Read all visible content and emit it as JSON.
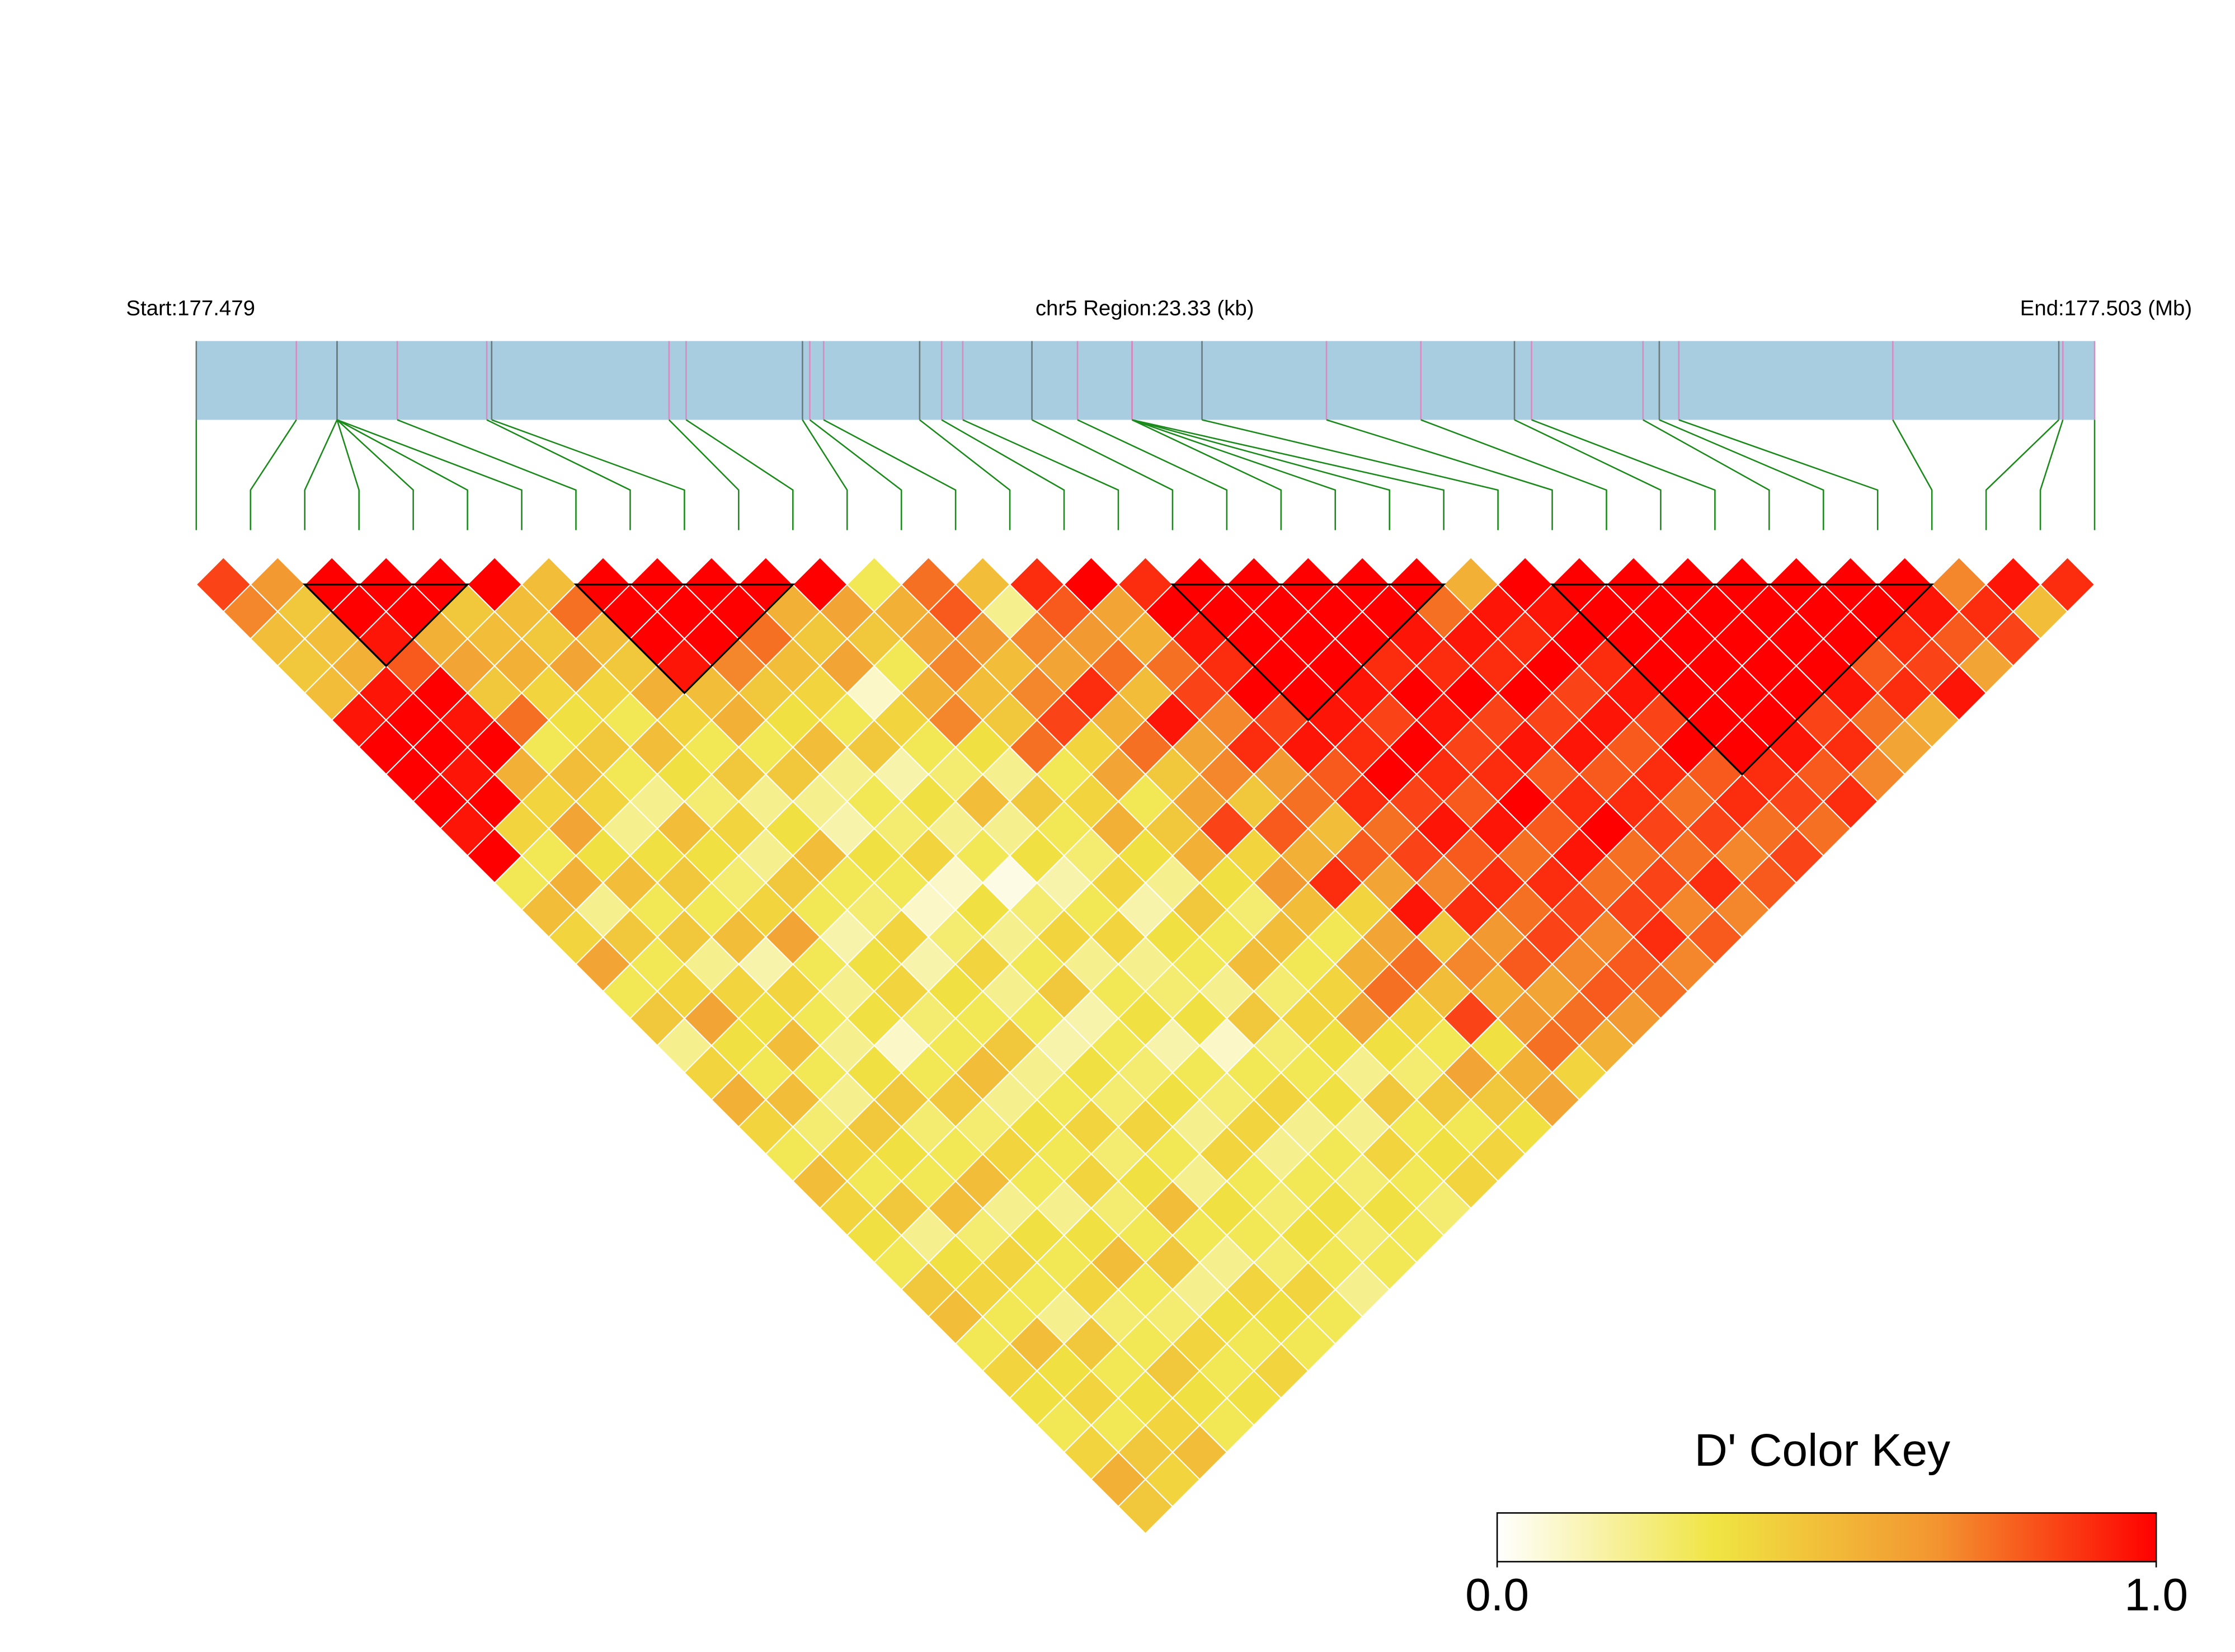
{
  "chart_data": {
    "type": "ld_heatmap",
    "start_label": "Start:177.479",
    "region_label": "chr5 Region:23.33 (kb)",
    "end_label": "End:177.503 (Mb)",
    "xlim": [
      0,
      23.33
    ],
    "track_color": "#a8cde0",
    "snp_positions_kb": [
      0,
      1.23,
      1.73,
      1.73,
      1.73,
      1.73,
      1.73,
      2.47,
      3.57,
      3.63,
      5.81,
      6.02,
      7.45,
      7.54,
      7.71,
      8.89,
      9.16,
      9.42,
      10.27,
      10.83,
      11.5,
      11.5,
      11.5,
      11.5,
      12.36,
      13.89,
      15.05,
      16.2,
      16.41,
      17.78,
      17.98,
      18.22,
      20.85,
      22.89,
      22.94,
      23.33
    ],
    "dprime": [
      [
        0.85,
        0.7,
        0.5,
        0.45,
        0.5,
        0.95,
        1,
        1,
        1,
        0.95,
        1,
        0.3,
        0.5,
        0.4,
        0.6,
        0.3,
        0.45,
        0.2,
        0.4,
        0.55,
        0.4,
        0.3,
        0.5,
        0.4,
        0.35,
        0.3,
        0.45,
        0.5,
        0.3,
        0.4,
        0.35,
        0.3,
        0.4,
        0.55,
        0.45
      ],
      [
        0.65,
        0.45,
        0.5,
        0.55,
        0.95,
        1,
        1,
        0.95,
        1,
        0.4,
        0.3,
        0.55,
        0.2,
        0.45,
        0.3,
        0.4,
        0.6,
        0.35,
        0.3,
        0.5,
        0.25,
        0.4,
        0.3,
        0.45,
        0.2,
        0.35,
        0.4,
        0.3,
        0.5,
        0.35,
        0.4,
        0.3,
        0.45,
        0.4
      ],
      [
        1,
        1,
        0.95,
        0.8,
        1,
        0.95,
        1,
        0.55,
        0.4,
        0.6,
        0.35,
        0.5,
        0.3,
        0.45,
        0.2,
        0.4,
        0.35,
        0.5,
        0.3,
        0.2,
        0.45,
        0.35,
        0.3,
        0.5,
        0.25,
        0.4,
        0.3,
        0.2,
        0.45,
        0.3,
        0.35,
        0.4,
        0.5
      ],
      [
        1,
        1,
        0.55,
        0.6,
        0.45,
        0.75,
        0.3,
        0.5,
        0.4,
        0.2,
        0.35,
        0.45,
        0.3,
        0.5,
        0.15,
        0.4,
        0.3,
        0.2,
        0.35,
        0.45,
        0.25,
        0.3,
        0.5,
        0.2,
        0.35,
        0.3,
        0.4,
        0.25,
        0.3,
        0.45,
        0.35,
        0.3
      ],
      [
        1,
        0.45,
        0.5,
        0.55,
        0.4,
        0.35,
        0.45,
        0.3,
        0.2,
        0.5,
        0.35,
        0.25,
        0.4,
        0.6,
        0.3,
        0.2,
        0.35,
        0.1,
        0.3,
        0.45,
        0.25,
        0.4,
        0.3,
        0.2,
        0.35,
        0.5,
        0.3,
        0.25,
        0.4,
        0.3,
        0.35
      ],
      [
        1,
        0.5,
        0.45,
        0.6,
        0.4,
        0.3,
        0.5,
        0.35,
        0.25,
        0.4,
        0.2,
        0.45,
        0.3,
        0.15,
        0.35,
        0.4,
        0.25,
        0.3,
        0.5,
        0.2,
        0.35,
        0.3,
        0.4,
        0.25,
        0.3,
        0.45,
        0.2,
        0.35,
        0.3,
        0.4
      ],
      [
        0.5,
        0.75,
        0.5,
        0.45,
        0.55,
        0.4,
        0.3,
        0.45,
        0.2,
        0.35,
        0.5,
        0.3,
        0.25,
        0.4,
        0.15,
        0.35,
        0.3,
        0.45,
        0.2,
        0.3,
        0.4,
        0.25,
        0.35,
        0.5,
        0.3,
        0.2,
        0.4,
        0.35,
        0.3
      ],
      [
        1,
        1,
        1,
        0.95,
        0.5,
        0.55,
        0.3,
        0.45,
        0.2,
        0.15,
        0.35,
        0.3,
        0.1,
        0.25,
        0.4,
        0.2,
        0.3,
        0.15,
        0.35,
        0.25,
        0.4,
        0.3,
        0.2,
        0.35,
        0.3,
        0.25,
        0.4,
        0.3
      ],
      [
        1,
        1,
        1,
        0.7,
        0.45,
        0.35,
        0.5,
        0.2,
        0.3,
        0.25,
        0.4,
        0.1,
        0.35,
        0.2,
        0.3,
        0.45,
        0.15,
        0.3,
        0.25,
        0.35,
        0.2,
        0.4,
        0.3,
        0.25,
        0.35,
        0.3,
        0.2
      ],
      [
        1,
        1,
        0.75,
        0.5,
        0.4,
        0.3,
        0.45,
        0.15,
        0.35,
        0.2,
        0.3,
        0.05,
        0.25,
        0.4,
        0.2,
        0.3,
        0.35,
        0.15,
        0.3,
        0.25,
        0.4,
        0.2,
        0.3,
        0.35,
        0.25,
        0.3
      ],
      [
        1,
        0.55,
        0.45,
        0.6,
        0.1,
        0.4,
        0.3,
        0.25,
        0.5,
        0.2,
        0.35,
        0.15,
        0.3,
        0.4,
        0.2,
        0.25,
        0.35,
        0.1,
        0.3,
        0.4,
        0.2,
        0.3,
        0.25,
        0.35,
        0.3
      ],
      [
        1,
        0.6,
        0.45,
        0.3,
        0.55,
        0.7,
        0.35,
        0.2,
        0.45,
        0.3,
        0.25,
        0.4,
        0.15,
        0.35,
        0.3,
        0.2,
        0.45,
        0.25,
        0.3,
        0.35,
        0.2,
        0.4,
        0.3,
        0.25
      ],
      [
        0.3,
        0.55,
        0.6,
        0.7,
        0.5,
        0.45,
        0.75,
        0.3,
        0.4,
        0.55,
        0.35,
        0.2,
        0.45,
        0.3,
        0.5,
        0.25,
        0.4,
        0.35,
        0.2,
        0.45,
        0.3,
        0.35,
        0.4
      ],
      [
        0.75,
        0.8,
        0.65,
        0.5,
        0.7,
        0.85,
        0.4,
        0.6,
        0.3,
        0.45,
        0.55,
        0.35,
        0.25,
        0.5,
        0.3,
        0.4,
        0.6,
        0.35,
        0.25,
        0.45,
        0.3,
        0.4
      ],
      [
        0.5,
        0.2,
        0.7,
        0.6,
        0.9,
        0.55,
        0.75,
        0.45,
        0.6,
        0.85,
        0.4,
        0.65,
        0.5,
        0.3,
        0.55,
        0.75,
        0.4,
        0.3,
        0.6,
        0.45,
        0.35
      ],
      [
        0.9,
        0.8,
        0.65,
        0.75,
        0.5,
        0.95,
        0.6,
        0.7,
        0.45,
        0.8,
        0.55,
        0.9,
        0.4,
        0.6,
        0.75,
        0.5,
        0.85,
        0.35,
        0.55,
        0.6
      ],
      [
        1,
        0.6,
        0.55,
        0.75,
        0.85,
        0.7,
        0.9,
        0.65,
        0.75,
        0.5,
        0.8,
        0.6,
        0.95,
        0.45,
        0.7,
        0.55,
        0.65,
        0.75,
        0.4
      ],
      [
        0.9,
        1,
        0.95,
        0.9,
        1,
        0.85,
        0.95,
        0.8,
        0.9,
        0.75,
        0.85,
        0.7,
        0.9,
        0.65,
        0.8,
        0.6,
        0.75,
        0.55
      ],
      [
        1,
        1,
        1,
        1,
        1,
        0.95,
        0.9,
        1,
        0.85,
        0.95,
        0.8,
        0.9,
        0.75,
        0.85,
        0.7,
        0.8,
        0.65
      ],
      [
        1,
        1,
        1,
        1,
        0.95,
        0.85,
        1,
        0.9,
        0.8,
        0.95,
        0.75,
        0.9,
        0.85,
        0.7,
        0.8,
        0.75
      ],
      [
        1,
        1,
        1,
        0.9,
        1,
        0.95,
        0.85,
        0.9,
        1,
        0.8,
        0.95,
        0.75,
        0.85,
        0.9,
        0.7
      ],
      [
        1,
        1,
        0.95,
        0.9,
        1,
        0.85,
        0.95,
        0.8,
        0.9,
        1,
        0.75,
        0.85,
        0.7,
        0.8
      ],
      [
        1,
        0.75,
        0.95,
        0.9,
        1,
        0.85,
        0.95,
        0.8,
        0.9,
        0.85,
        0.75,
        0.9,
        0.7
      ],
      [
        0.55,
        0.95,
        0.9,
        1,
        0.85,
        0.95,
        0.8,
        0.9,
        0.75,
        0.85,
        0.7,
        0.8
      ],
      [
        1,
        0.95,
        1,
        0.9,
        0.95,
        0.85,
        1,
        0.8,
        0.9,
        0.75,
        0.85
      ],
      [
        1,
        1,
        1,
        1,
        1,
        1,
        1,
        0.9,
        0.85,
        0.75
      ],
      [
        1,
        1,
        1,
        1,
        1,
        1,
        0.95,
        0.8,
        0.9
      ],
      [
        1,
        1,
        1,
        1,
        1,
        0.85,
        0.9,
        0.7
      ],
      [
        1,
        1,
        1,
        1,
        0.95,
        0.75,
        0.6
      ],
      [
        1,
        1,
        1,
        0.8,
        0.9,
        0.55
      ],
      [
        1,
        1,
        0.9,
        0.85,
        0.95
      ],
      [
        1,
        0.95,
        0.8,
        0.6
      ],
      [
        0.7,
        0.9,
        0.85
      ],
      [
        0.95,
        0.5
      ],
      [
        0.9
      ]
    ],
    "blocks": [
      [
        2,
        5
      ],
      [
        7,
        11
      ],
      [
        18,
        23
      ],
      [
        25,
        32
      ]
    ],
    "colorkey": {
      "title": "D' Color Key",
      "lim": [
        0,
        1
      ],
      "ticks": [
        {
          "value": 0,
          "label": "0.0"
        },
        {
          "value": 1,
          "label": "1.0"
        }
      ],
      "colors": [
        "#ffffff",
        "#f0e442",
        "#f39530",
        "#ff0000"
      ]
    }
  }
}
